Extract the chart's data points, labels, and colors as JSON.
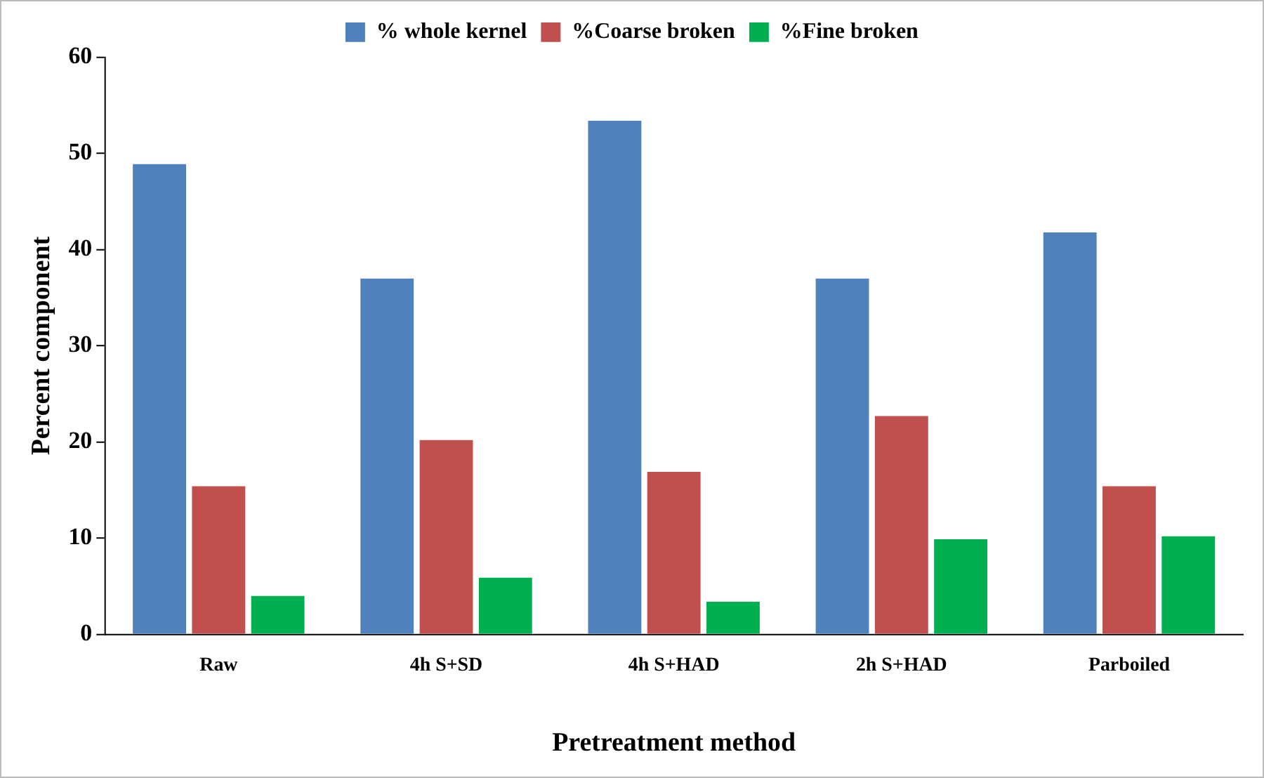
{
  "chart_data": {
    "type": "bar",
    "xlabel": "Pretreatment method",
    "ylabel": "Percent component",
    "categories": [
      "Raw",
      "4h S+SD",
      "4h S+HAD",
      "2h S+HAD",
      "Parboiled"
    ],
    "series": [
      {
        "name": "% whole kernel",
        "color": "#4f81bd",
        "values": [
          48.9,
          37.0,
          53.4,
          37.0,
          41.8
        ]
      },
      {
        "name": "%Coarse broken",
        "color": "#c0504d",
        "values": [
          15.4,
          20.2,
          16.9,
          22.7,
          15.4
        ]
      },
      {
        "name": "%Fine broken",
        "color": "#00b050",
        "values": [
          4.0,
          5.9,
          3.4,
          9.9,
          10.2
        ]
      }
    ],
    "ylim": [
      0,
      60
    ],
    "yticks": [
      0,
      10,
      20,
      30,
      40,
      50,
      60
    ],
    "grid": false,
    "legend": "top"
  }
}
